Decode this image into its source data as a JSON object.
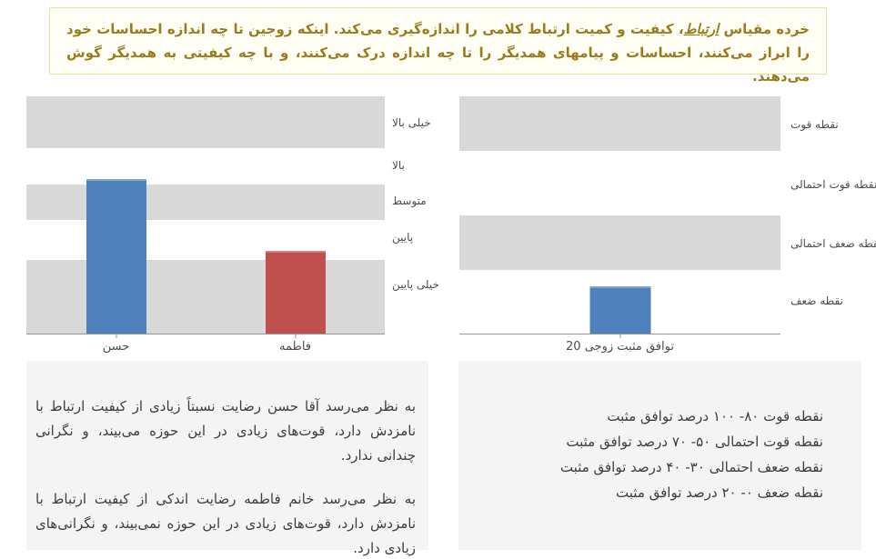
{
  "note": {
    "prefix": "خرده مقیاس ",
    "emphasis": "ارتباط",
    "suffix": "، کیفیت و کمیت ارتباط کلامی را اندازه‌گیری می‌کند. اینکه زوجین تا چه اندازه احساسات خود را ابراز می‌کنند، احساسات و پیامهای همدیگر را تا چه اندازه درک می‌کنند، و با چه کیفیتی به همدیگر گوش می‌دهند."
  },
  "chart_data": [
    {
      "type": "bar",
      "title": "",
      "categories": [
        "حسن",
        "فاطمه"
      ],
      "values": [
        65,
        35
      ],
      "bar_colors": [
        "#4F81BD",
        "#C0504D"
      ],
      "ylim": [
        0,
        100
      ],
      "grid": "horizontal-bands",
      "legend_position": "none",
      "axis_labels_side": "right",
      "bands": [
        {
          "label": "خیلی بالا",
          "range": [
            78,
            100
          ],
          "shaded": true,
          "label_pos": 89
        },
        {
          "label": "بالا",
          "range": [
            63,
            78
          ],
          "shaded": false,
          "label_pos": 71
        },
        {
          "label": "متوسط",
          "range": [
            48,
            63
          ],
          "shaded": true,
          "label_pos": 56
        },
        {
          "label": "پایین",
          "range": [
            31,
            48
          ],
          "shaded": false,
          "label_pos": 41
        },
        {
          "label": "خیلی پایین",
          "range": [
            0,
            31
          ],
          "shaded": true,
          "label_pos": 21
        }
      ]
    },
    {
      "type": "bar",
      "title": "",
      "categories": [
        "توافق مثبت زوجی 20"
      ],
      "values": [
        20
      ],
      "bar_colors": [
        "#4F81BD"
      ],
      "ylim": [
        0,
        100
      ],
      "grid": "horizontal-bands",
      "legend_position": "none",
      "axis_labels_side": "right",
      "bands": [
        {
          "label": "نقطه قوت",
          "range": [
            77,
            100
          ],
          "shaded": true,
          "label_pos": 88
        },
        {
          "label": "نقطه قوت احتمالی",
          "range": [
            50,
            77
          ],
          "shaded": false,
          "label_pos": 63
        },
        {
          "label": "نقطه ضعف احتمالی",
          "range": [
            27,
            50
          ],
          "shaded": true,
          "label_pos": 38
        },
        {
          "label": "نقطه ضعف",
          "range": [
            0,
            27
          ],
          "shaded": false,
          "label_pos": 14
        }
      ]
    }
  ],
  "interpretation": {
    "paragraphs": [
      "به نظر می‌رسد آقا حسن رضایت نسبتاً زیادی از کیفیت ارتباط با نامزدش دارد، قوت‌های زیادی در این حوزه می‌بیند، و نگرانی چندانی ندارد.",
      "به نظر می‌رسد خانم فاطمه رضایت اندکی از کیفیت ارتباط با نامزدش دارد، قوت‌های زیادی در این حوزه نمی‌بیند، و نگرانی‌های زیادی دارد."
    ]
  },
  "band_legend": {
    "lines": [
      "نقطه قوت ۸۰- ۱۰۰ درصد توافق مثبت",
      "نقطه قوت احتمالی ۵۰- ۷۰ درصد توافق مثبت",
      "نقطه ضعف احتمالی ۳۰- ۴۰ درصد توافق مثبت",
      "نقطه ضعف ۰- ۲۰ درصد توافق مثبت"
    ]
  },
  "colors": {
    "bar_blue": "#4F81BD",
    "bar_red": "#C0504D",
    "band_gray": "#D9D9D9",
    "panel_gray": "#F4F4F4",
    "note_background": "#FFFEF4",
    "note_border": "#E9DFA0",
    "note_text": "#9A7B1E",
    "body_text": "#3D3D3D",
    "axis_line": "#969696"
  }
}
